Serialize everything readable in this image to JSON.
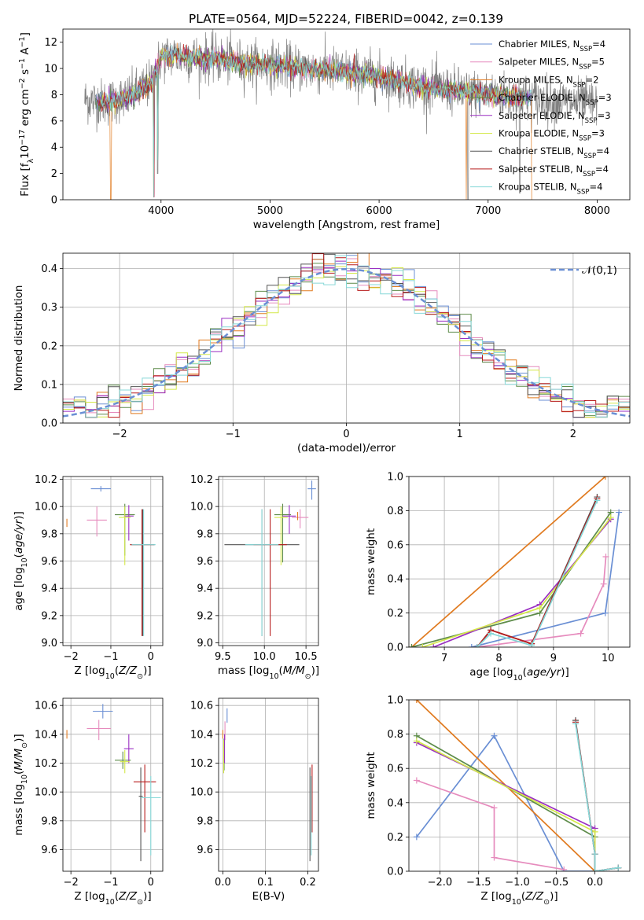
{
  "title": "PLATE=0564, MJD=52224, FIBERID=0042, z=0.139",
  "legend": [
    {
      "name": "Chabrier MILES, N_SSP=4",
      "base": "Chabrier MILES, N",
      "sub": "SSP",
      "suffix": "=4",
      "color": "#6a8fd4"
    },
    {
      "name": "Salpeter MILES, N_SSP=5",
      "base": "Salpeter MILES, N",
      "sub": "SSP",
      "suffix": "=5",
      "color": "#e68bbd"
    },
    {
      "name": "Kroupa MILES, N_SSP=2",
      "base": "Kroupa MILES, N",
      "sub": "SSP",
      "suffix": "=2",
      "color": "#e07a1f"
    },
    {
      "name": "Chabrier ELODIE, N_SSP=3",
      "base": "Chabrier ELODIE, N",
      "sub": "SSP",
      "suffix": "=3",
      "color": "#5e8c4a"
    },
    {
      "name": "Salpeter ELODIE, N_SSP=3",
      "base": "Salpeter ELODIE, N",
      "sub": "SSP",
      "suffix": "=3",
      "color": "#9a2fc2"
    },
    {
      "name": "Kroupa ELODIE, N_SSP=3",
      "base": "Kroupa ELODIE, N",
      "sub": "SSP",
      "suffix": "=3",
      "color": "#d4e84a"
    },
    {
      "name": "Chabrier STELIB, N_SSP=4",
      "base": "Chabrier STELIB, N",
      "sub": "SSP",
      "suffix": "=4",
      "color": "#555555"
    },
    {
      "name": "Salpeter STELIB, N_SSP=4",
      "base": "Salpeter STELIB, N",
      "sub": "SSP",
      "suffix": "=4",
      "color": "#b81c1c"
    },
    {
      "name": "Kroupa STELIB, N_SSP=4",
      "base": "Kroupa STELIB, N",
      "sub": "SSP",
      "suffix": "=4",
      "color": "#86d8d8"
    }
  ],
  "gauss_label": "𝒩(0,1)",
  "chart_data": [
    {
      "id": "spectrum",
      "type": "line",
      "xlabel": "wavelength [Angstrom, rest frame]",
      "ylabel": "Flux [f_λ 10^-17 erg cm^-2 s^-1 A^-1]",
      "xlim": [
        3100,
        8300
      ],
      "ylim": [
        0,
        13
      ],
      "xticks": [
        4000,
        5000,
        6000,
        7000,
        8000
      ],
      "yticks": [
        0,
        2,
        4,
        6,
        8,
        10,
        12
      ],
      "grid": false,
      "continuum": {
        "x": [
          3300,
          3500,
          3700,
          3900,
          4000,
          4100,
          4300,
          4500,
          4800,
          5000,
          5300,
          5600,
          6000,
          6300,
          6600,
          6900,
          7200,
          7500,
          7800,
          8000
        ],
        "y": [
          7.6,
          7.4,
          7.8,
          8.8,
          10.8,
          11.0,
          10.8,
          10.7,
          10.3,
          10.3,
          10.0,
          9.8,
          9.4,
          8.8,
          8.4,
          8.1,
          7.9,
          7.6,
          7.4,
          7.3
        ]
      },
      "data_range": [
        3300,
        8000
      ],
      "model_range": [
        3400,
        7400
      ]
    },
    {
      "id": "residuals",
      "type": "step",
      "xlabel": "(data-model)/error",
      "ylabel": "Normed distribution",
      "xlim": [
        -2.5,
        2.5
      ],
      "ylim": [
        0,
        0.44
      ],
      "xticks": [
        -2,
        -1,
        0,
        1,
        2
      ],
      "yticks": [
        0.0,
        0.1,
        0.2,
        0.3,
        0.4
      ],
      "grid": true,
      "bin_width": 0.1,
      "gaussian": {
        "mean": 0,
        "sigma": 1
      },
      "legend_position": "top-right"
    },
    {
      "id": "age-vs-Z",
      "type": "scatter",
      "xlabel": "Z [log10(Z/Z⊙)]",
      "ylabel": "age [log10(age/yr)]",
      "xlim": [
        -2.2,
        0.3
      ],
      "ylim": [
        8.98,
        10.22
      ],
      "xticks": [
        -2,
        -1,
        0
      ],
      "yticks": [
        9.0,
        9.2,
        9.4,
        9.6,
        9.8,
        10.0,
        10.2
      ],
      "grid": true,
      "points": [
        {
          "series": 0,
          "x": -1.25,
          "y": 10.13,
          "xerr": 0.25,
          "yerr": [
            0.02,
            0.02
          ]
        },
        {
          "series": 1,
          "x": -1.35,
          "y": 9.9,
          "xerr": 0.25,
          "yerr": [
            0.12,
            0.1
          ]
        },
        {
          "series": 2,
          "x": -2.1,
          "y": 9.88,
          "xerr": 0.0,
          "yerr": [
            0.03,
            0.03
          ]
        },
        {
          "series": 3,
          "x": -0.65,
          "y": 9.94,
          "xerr": 0.25,
          "yerr": [
            0.3,
            0.08
          ]
        },
        {
          "series": 4,
          "x": -0.55,
          "y": 9.93,
          "xerr": 0.12,
          "yerr": [
            0.18,
            0.08
          ]
        },
        {
          "series": 5,
          "x": -0.65,
          "y": 9.92,
          "xerr": 0.15,
          "yerr": [
            0.35,
            0.08
          ]
        },
        {
          "series": 6,
          "x": -0.2,
          "y": 9.72,
          "xerr": 0.3,
          "yerr": [
            0.67,
            0.26
          ]
        },
        {
          "series": 7,
          "x": -0.22,
          "y": 9.72,
          "xerr": 0.3,
          "yerr": [
            0.67,
            0.26
          ]
        },
        {
          "series": 8,
          "x": -0.18,
          "y": 9.72,
          "xerr": 0.3,
          "yerr": [
            0.67,
            0.26
          ]
        }
      ]
    },
    {
      "id": "age-vs-mass",
      "type": "scatter",
      "xlabel": "mass [log10(M/M⊙)]",
      "ylabel": "",
      "xlim": [
        9.45,
        10.65
      ],
      "ylim": [
        8.98,
        10.22
      ],
      "xticks": [
        9.5,
        10.0,
        10.5
      ],
      "yticks": [
        9.0,
        9.2,
        9.4,
        9.6,
        9.8,
        10.0,
        10.2
      ],
      "grid": true,
      "points": [
        {
          "series": 0,
          "x": 10.57,
          "y": 10.13,
          "xerr": 0.05,
          "yerr": [
            0.08,
            0.06
          ]
        },
        {
          "series": 1,
          "x": 10.43,
          "y": 9.92,
          "xerr": 0.1,
          "yerr": [
            0.08,
            0.06
          ]
        },
        {
          "series": 2,
          "x": 10.4,
          "y": 9.93,
          "xerr": 0.0,
          "yerr": [
            0.03,
            0.03
          ]
        },
        {
          "series": 3,
          "x": 10.22,
          "y": 9.94,
          "xerr": 0.1,
          "yerr": [
            0.35,
            0.08
          ]
        },
        {
          "series": 4,
          "x": 10.3,
          "y": 9.93,
          "xerr": 0.08,
          "yerr": [
            0.13,
            0.08
          ]
        },
        {
          "series": 5,
          "x": 10.2,
          "y": 9.92,
          "xerr": 0.08,
          "yerr": [
            0.35,
            0.08
          ]
        },
        {
          "series": 6,
          "x": 9.97,
          "y": 9.72,
          "xerr": 0.45,
          "yerr": [
            0.67,
            0.26
          ]
        },
        {
          "series": 7,
          "x": 10.07,
          "y": 9.72,
          "xerr": 0.2,
          "yerr": [
            0.67,
            0.26
          ]
        },
        {
          "series": 8,
          "x": 9.97,
          "y": 9.72,
          "xerr": 0.2,
          "yerr": [
            0.67,
            0.26
          ]
        }
      ]
    },
    {
      "id": "weight-vs-age",
      "type": "line",
      "xlabel": "age [log10(age/yr)]",
      "ylabel": "mass weight",
      "xlim": [
        6.35,
        10.4
      ],
      "ylim": [
        0,
        1
      ],
      "xticks": [
        7,
        8,
        9,
        10
      ],
      "yticks": [
        0.0,
        0.2,
        0.4,
        0.6,
        0.8,
        1.0
      ],
      "grid": true,
      "series": [
        {
          "series": 0,
          "x": [
            7.5,
            9.95,
            10.2
          ],
          "y": [
            0.0,
            0.2,
            0.79
          ]
        },
        {
          "series": 1,
          "x": [
            7.6,
            9.5,
            9.92,
            9.96
          ],
          "y": [
            0.0,
            0.08,
            0.37,
            0.53
          ]
        },
        {
          "series": 2,
          "x": [
            6.4,
            9.95
          ],
          "y": [
            0.0,
            1.0
          ]
        },
        {
          "series": 3,
          "x": [
            6.4,
            8.75,
            10.05
          ],
          "y": [
            0.0,
            0.2,
            0.79
          ]
        },
        {
          "series": 4,
          "x": [
            6.8,
            8.75,
            10.05
          ],
          "y": [
            0.0,
            0.25,
            0.75
          ]
        },
        {
          "series": 5,
          "x": [
            6.6,
            8.75,
            10.05
          ],
          "y": [
            0.0,
            0.23,
            0.76
          ]
        },
        {
          "series": 6,
          "x": [
            7.6,
            7.85,
            8.6,
            9.8
          ],
          "y": [
            0.0,
            0.1,
            0.02,
            0.88
          ]
        },
        {
          "series": 7,
          "x": [
            7.6,
            7.85,
            8.6,
            9.8
          ],
          "y": [
            0.0,
            0.1,
            0.02,
            0.87
          ]
        },
        {
          "series": 8,
          "x": [
            7.6,
            7.85,
            8.6,
            9.8
          ],
          "y": [
            0.0,
            0.08,
            0.01,
            0.86
          ]
        }
      ]
    },
    {
      "id": "mass-vs-Z",
      "type": "scatter",
      "xlabel": "Z [log10(Z/Z⊙)]",
      "ylabel": "mass [log10(M/M⊙)]",
      "xlim": [
        -2.2,
        0.3
      ],
      "ylim": [
        9.45,
        10.65
      ],
      "xticks": [
        -2,
        -1,
        0
      ],
      "yticks": [
        9.6,
        9.8,
        10.0,
        10.2,
        10.4,
        10.6
      ],
      "grid": true,
      "points": [
        {
          "series": 0,
          "x": -1.2,
          "y": 10.56,
          "xerr": 0.25,
          "yerr": [
            0.05,
            0.05
          ]
        },
        {
          "series": 1,
          "x": -1.3,
          "y": 10.44,
          "xerr": 0.3,
          "yerr": [
            0.08,
            0.06
          ]
        },
        {
          "series": 2,
          "x": -2.1,
          "y": 10.4,
          "xerr": 0.0,
          "yerr": [
            0.03,
            0.03
          ]
        },
        {
          "series": 3,
          "x": -0.7,
          "y": 10.22,
          "xerr": 0.2,
          "yerr": [
            0.06,
            0.06
          ]
        },
        {
          "series": 4,
          "x": -0.55,
          "y": 10.3,
          "xerr": 0.12,
          "yerr": [
            0.1,
            0.1
          ]
        },
        {
          "series": 5,
          "x": -0.65,
          "y": 10.21,
          "xerr": 0.12,
          "yerr": [
            0.08,
            0.08
          ]
        },
        {
          "series": 6,
          "x": -0.25,
          "y": 9.97,
          "xerr": 0.05,
          "yerr": [
            0.45,
            0.2
          ]
        },
        {
          "series": 7,
          "x": -0.15,
          "y": 10.07,
          "xerr": 0.28,
          "yerr": [
            0.35,
            0.12
          ]
        },
        {
          "series": 8,
          "x": 0.0,
          "y": 9.96,
          "xerr": 0.25,
          "yerr": [
            0.4,
            0.15
          ]
        }
      ]
    },
    {
      "id": "mass-vs-EBV",
      "type": "scatter",
      "xlabel": "E(B-V)",
      "ylabel": "",
      "xlim": [
        -0.01,
        0.225
      ],
      "ylim": [
        9.45,
        10.65
      ],
      "xticks": [
        0.0,
        0.1,
        0.2
      ],
      "yticks": [
        9.6,
        9.8,
        10.0,
        10.2,
        10.4,
        10.6
      ],
      "grid": true,
      "points": [
        {
          "series": 0,
          "x": 0.01,
          "y": 10.53,
          "xerr": 0.0,
          "yerr": [
            0.05,
            0.05
          ]
        },
        {
          "series": 1,
          "x": 0.005,
          "y": 10.44,
          "xerr": 0.0,
          "yerr": [
            0.08,
            0.05
          ]
        },
        {
          "series": 2,
          "x": 0.0,
          "y": 10.4,
          "xerr": 0.0,
          "yerr": [
            0.03,
            0.03
          ]
        },
        {
          "series": 3,
          "x": 0.003,
          "y": 10.22,
          "xerr": 0.0,
          "yerr": [
            0.07,
            0.15
          ]
        },
        {
          "series": 4,
          "x": 0.004,
          "y": 10.3,
          "xerr": 0.0,
          "yerr": [
            0.1,
            0.1
          ]
        },
        {
          "series": 5,
          "x": 0.002,
          "y": 10.21,
          "xerr": 0.0,
          "yerr": [
            0.08,
            0.15
          ]
        },
        {
          "series": 6,
          "x": 0.205,
          "y": 9.97,
          "xerr": 0.0,
          "yerr": [
            0.45,
            0.2
          ]
        },
        {
          "series": 7,
          "x": 0.21,
          "y": 10.07,
          "xerr": 0.0,
          "yerr": [
            0.35,
            0.12
          ]
        },
        {
          "series": 8,
          "x": 0.208,
          "y": 9.96,
          "xerr": 0.0,
          "yerr": [
            0.4,
            0.15
          ]
        }
      ]
    },
    {
      "id": "weight-vs-Z",
      "type": "line",
      "xlabel": "Z [log10(Z/Z⊙)]",
      "ylabel": "mass weight",
      "xlim": [
        -2.4,
        0.45
      ],
      "ylim": [
        0,
        1
      ],
      "xticks": [
        -2.0,
        -1.5,
        -1.0,
        -0.5,
        0.0
      ],
      "yticks": [
        0.0,
        0.2,
        0.4,
        0.6,
        0.8,
        1.0
      ],
      "grid": true,
      "series": [
        {
          "series": 0,
          "x": [
            -2.3,
            -1.3,
            -0.4,
            0.0,
            0.3
          ],
          "y": [
            0.2,
            0.79,
            0.0,
            0.0,
            0.02
          ]
        },
        {
          "series": 1,
          "x": [
            -2.3,
            -1.3,
            -1.3,
            -0.4
          ],
          "y": [
            0.53,
            0.37,
            0.08,
            0.01
          ]
        },
        {
          "series": 2,
          "x": [
            -2.3,
            0.0
          ],
          "y": [
            1.0,
            0.0
          ]
        },
        {
          "series": 3,
          "x": [
            -2.3,
            0.0,
            0.0
          ],
          "y": [
            0.79,
            0.2,
            0.0
          ]
        },
        {
          "series": 4,
          "x": [
            -2.3,
            0.0,
            0.0
          ],
          "y": [
            0.75,
            0.25,
            0.0
          ]
        },
        {
          "series": 5,
          "x": [
            -2.3,
            0.0,
            0.0
          ],
          "y": [
            0.76,
            0.23,
            0.0
          ]
        },
        {
          "series": 6,
          "x": [
            -0.25,
            0.0,
            0.0,
            0.3
          ],
          "y": [
            0.88,
            0.1,
            0.0,
            0.02
          ]
        },
        {
          "series": 7,
          "x": [
            -0.25,
            0.0,
            0.0,
            0.3
          ],
          "y": [
            0.87,
            0.1,
            0.0,
            0.02
          ]
        },
        {
          "series": 8,
          "x": [
            -0.25,
            0.0,
            0.0,
            0.3
          ],
          "y": [
            0.86,
            0.1,
            0.0,
            0.02
          ]
        }
      ]
    }
  ]
}
